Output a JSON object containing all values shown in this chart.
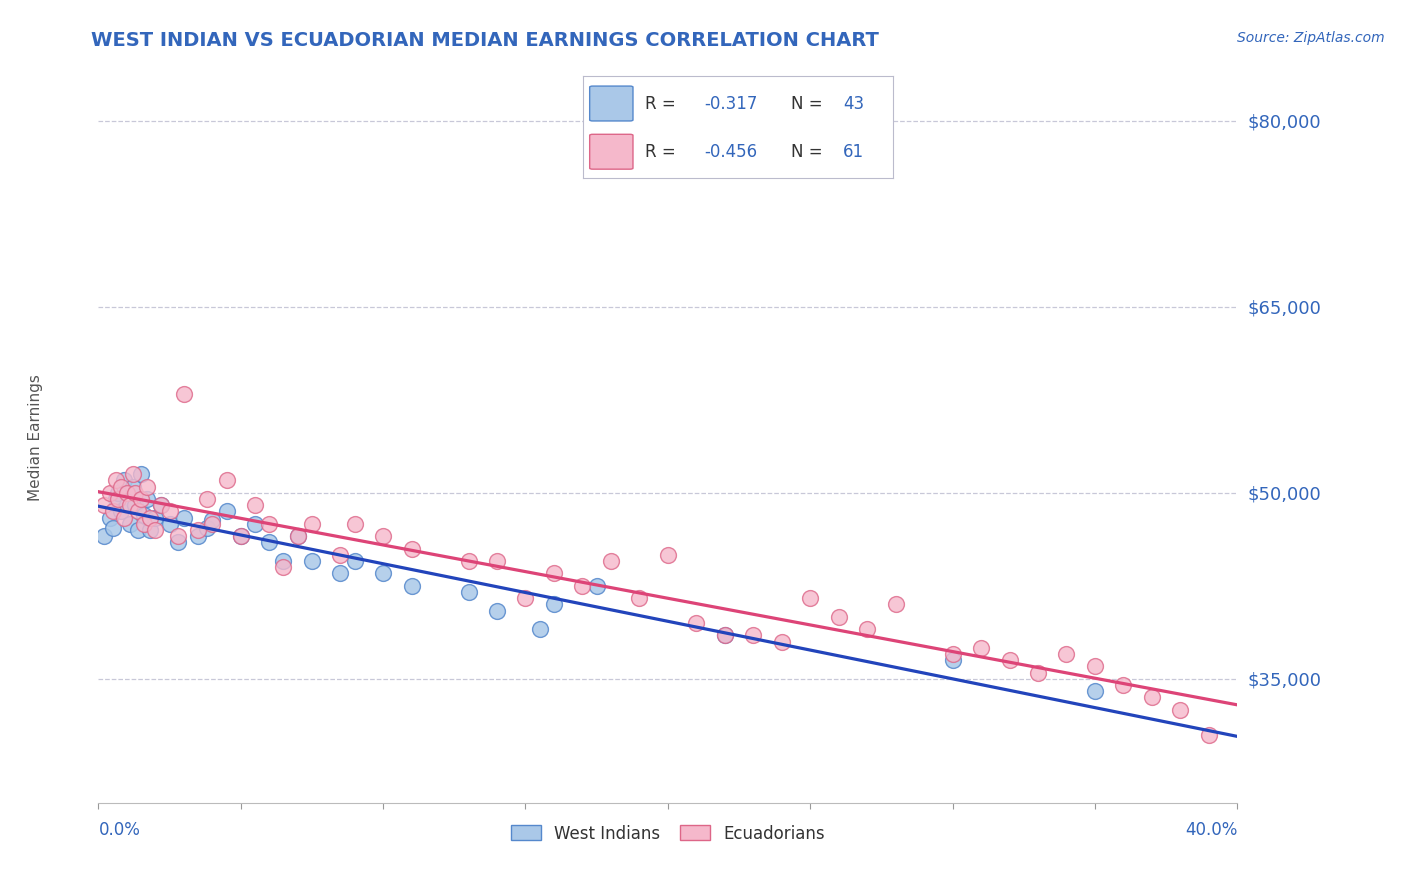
{
  "title": "WEST INDIAN VS ECUADORIAN MEDIAN EARNINGS CORRELATION CHART",
  "source": "Source: ZipAtlas.com",
  "ylabel": "Median Earnings",
  "xmin": 0.0,
  "xmax": 0.4,
  "ymin": 25000,
  "ymax": 84000,
  "west_indian_color": "#aac8e8",
  "west_indian_edge": "#5588cc",
  "ecuadorian_color": "#f5b8cb",
  "ecuadorian_edge": "#dd6688",
  "blue_line_color": "#2244bb",
  "pink_line_color": "#dd4477",
  "R_west": -0.317,
  "N_west": 43,
  "R_ecu": -0.456,
  "N_ecu": 61,
  "background_color": "#ffffff",
  "grid_color": "#c8c8d8",
  "title_color": "#3366bb",
  "axis_label_color": "#3366bb",
  "west_indian_x": [
    0.002,
    0.004,
    0.005,
    0.006,
    0.007,
    0.008,
    0.009,
    0.01,
    0.011,
    0.012,
    0.013,
    0.014,
    0.015,
    0.016,
    0.017,
    0.018,
    0.02,
    0.022,
    0.025,
    0.028,
    0.03,
    0.035,
    0.038,
    0.04,
    0.045,
    0.05,
    0.055,
    0.06,
    0.065,
    0.07,
    0.075,
    0.085,
    0.09,
    0.1,
    0.11,
    0.13,
    0.14,
    0.155,
    0.16,
    0.175,
    0.22,
    0.3,
    0.35
  ],
  "west_indian_y": [
    46500,
    48000,
    47200,
    49500,
    50000,
    48500,
    51000,
    49000,
    47500,
    50500,
    49000,
    47000,
    51500,
    48200,
    49500,
    47000,
    48000,
    49000,
    47500,
    46000,
    48000,
    46500,
    47200,
    47800,
    48500,
    46500,
    47500,
    46000,
    44500,
    46500,
    44500,
    43500,
    44500,
    43500,
    42500,
    42000,
    40500,
    39000,
    41000,
    42500,
    38500,
    36500,
    34000
  ],
  "ecuadorian_x": [
    0.002,
    0.004,
    0.005,
    0.006,
    0.007,
    0.008,
    0.009,
    0.01,
    0.011,
    0.012,
    0.013,
    0.014,
    0.015,
    0.016,
    0.017,
    0.018,
    0.02,
    0.022,
    0.025,
    0.028,
    0.03,
    0.035,
    0.038,
    0.04,
    0.05,
    0.055,
    0.06,
    0.065,
    0.075,
    0.085,
    0.09,
    0.1,
    0.11,
    0.13,
    0.15,
    0.16,
    0.17,
    0.18,
    0.2,
    0.21,
    0.22,
    0.23,
    0.24,
    0.25,
    0.27,
    0.28,
    0.3,
    0.31,
    0.32,
    0.33,
    0.34,
    0.35,
    0.36,
    0.37,
    0.38,
    0.39,
    0.14,
    0.19,
    0.26,
    0.045,
    0.07
  ],
  "ecuadorian_y": [
    49000,
    50000,
    48500,
    51000,
    49500,
    50500,
    48000,
    50000,
    49000,
    51500,
    50000,
    48500,
    49500,
    47500,
    50500,
    48000,
    47000,
    49000,
    48500,
    46500,
    58000,
    47000,
    49500,
    47500,
    46500,
    49000,
    47500,
    44000,
    47500,
    45000,
    47500,
    46500,
    45500,
    44500,
    41500,
    43500,
    42500,
    44500,
    45000,
    39500,
    38500,
    38500,
    38000,
    41500,
    39000,
    41000,
    37000,
    37500,
    36500,
    35500,
    37000,
    36000,
    34500,
    33500,
    32500,
    30500,
    44500,
    41500,
    40000,
    51000,
    46500
  ]
}
